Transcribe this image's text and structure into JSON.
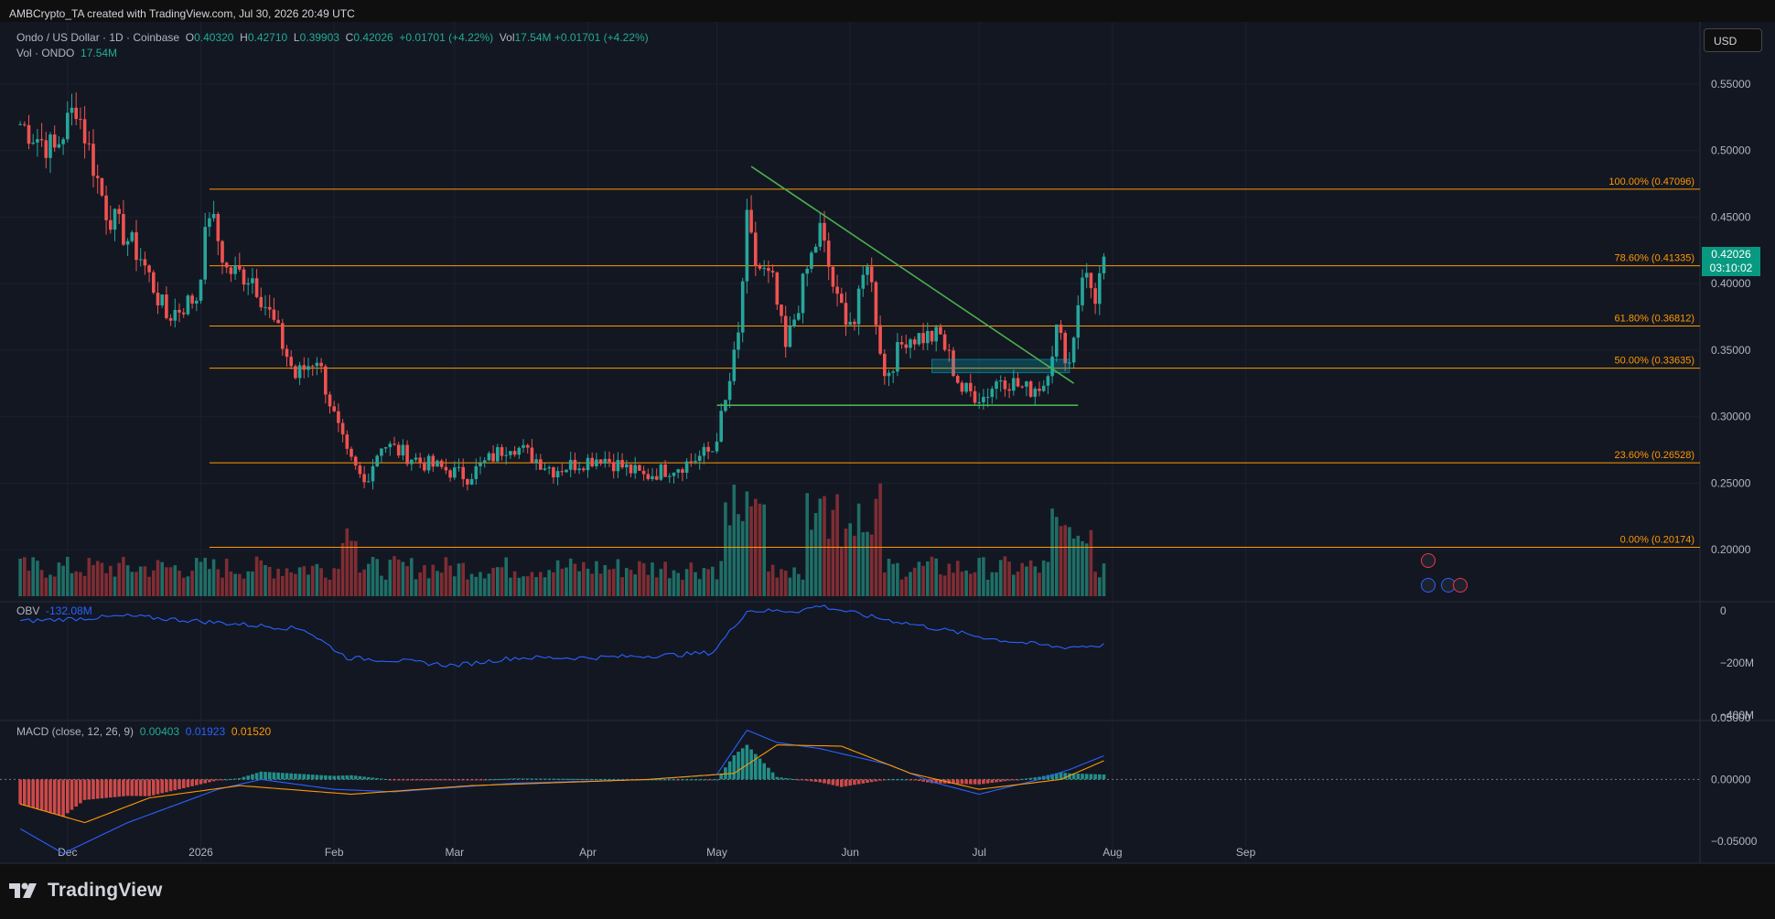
{
  "header": {
    "created_by": "AMBCrypto_TA created with TradingView.com, Jul 30, 2026 20:49 UTC",
    "symbol": "Ondo / US Dollar · 1D · Coinbase",
    "o_label": "O",
    "o_value": "0.40320",
    "h_label": "H",
    "h_value": "0.42710",
    "l_label": "L",
    "l_value": "0.39903",
    "c_label": "C",
    "c_value": "0.42026",
    "change": "+0.01701 (+4.22%)",
    "vol_label": "Vol",
    "vol_value": "17.54M",
    "vol_change": "+0.01701 (+4.22%)",
    "vol_series_label": "Vol · ONDO",
    "vol_series_value": "17.54M"
  },
  "currency_button": "USD",
  "last_price": {
    "value": "0.42026",
    "countdown": "03:10:02"
  },
  "obv": {
    "label": "OBV",
    "value": "-132.08M",
    "axis_ticks": [
      "0",
      "−200M",
      "−400M"
    ]
  },
  "macd": {
    "label": "MACD (close, 12, 26, 9)",
    "hist": "0.00403",
    "macd": "0.01923",
    "signal": "0.01520",
    "axis_ticks": [
      "0.05000",
      "0.00000",
      "−0.05000"
    ]
  },
  "branding": "TradingView",
  "colors": {
    "up": "#26a69a",
    "down": "#ef5350",
    "fib": "#ff9800",
    "trendline": "#4caf50",
    "obv": "#2962ff",
    "signal": "#ff9800",
    "background": "#0f0f0f",
    "pane": "#131722"
  },
  "chart_data": [
    {
      "type": "candlestick",
      "title": "Ondo / US Dollar · 1D · Coinbase",
      "x_tick_labels": [
        "Dec",
        "2026",
        "Feb",
        "Mar",
        "Apr",
        "May",
        "Jun",
        "Jul",
        "Aug",
        "Sep"
      ],
      "y_tick_labels": [
        "0.55000",
        "0.50000",
        "0.45000",
        "0.40000",
        "0.35000",
        "0.30000",
        "0.25000",
        "0.20000"
      ],
      "ylim": [
        0.165,
        0.565
      ],
      "price_anchors": [
        [
          "Nov 20",
          0.52
        ],
        [
          "Nov 28",
          0.5
        ],
        [
          "Dec 3",
          0.535
        ],
        [
          "Dec 10",
          0.455
        ],
        [
          "Dec 18",
          0.42
        ],
        [
          "Dec 24",
          0.375
        ],
        [
          "Dec 31",
          0.39
        ],
        [
          "Jan 3",
          0.455
        ],
        [
          "Jan 7",
          0.41
        ],
        [
          "Jan 13",
          0.405
        ],
        [
          "Jan 18",
          0.37
        ],
        [
          "Jan 23",
          0.33
        ],
        [
          "Jan 28",
          0.345
        ],
        [
          "Feb 1",
          0.3
        ],
        [
          "Feb 4",
          0.27
        ],
        [
          "Feb 8",
          0.25
        ],
        [
          "Feb 12",
          0.28
        ],
        [
          "Feb 22",
          0.265
        ],
        [
          "Mar 4",
          0.255
        ],
        [
          "Mar 14",
          0.28
        ],
        [
          "Mar 24",
          0.26
        ],
        [
          "Apr 4",
          0.27
        ],
        [
          "Apr 14",
          0.255
        ],
        [
          "Apr 24",
          0.265
        ],
        [
          "Apr 30",
          0.275
        ],
        [
          "May 3",
          0.31
        ],
        [
          "May 6",
          0.36
        ],
        [
          "May 8",
          0.445
        ],
        [
          "May 10",
          0.415
        ],
        [
          "May 14",
          0.4
        ],
        [
          "May 17",
          0.35
        ],
        [
          "May 22",
          0.41
        ],
        [
          "May 25",
          0.44
        ],
        [
          "May 29",
          0.385
        ],
        [
          "Jun 2",
          0.37
        ],
        [
          "Jun 5",
          0.42
        ],
        [
          "Jun 9",
          0.33
        ],
        [
          "Jun 14",
          0.36
        ],
        [
          "Jun 22",
          0.36
        ],
        [
          "Jun 27",
          0.32
        ],
        [
          "Jul 2",
          0.315
        ],
        [
          "Jul 6",
          0.33
        ],
        [
          "Jul 12",
          0.32
        ],
        [
          "Jul 16",
          0.325
        ],
        [
          "Jul 19",
          0.365
        ],
        [
          "Jul 22",
          0.34
        ],
        [
          "Jul 25",
          0.41
        ],
        [
          "Jul 28",
          0.39
        ],
        [
          "Jul 30",
          0.42026
        ]
      ],
      "fibonacci": [
        {
          "label": "100.00% (0.47096)",
          "value": 0.47096
        },
        {
          "label": "78.60% (0.41335)",
          "value": 0.41335
        },
        {
          "label": "61.80% (0.36812)",
          "value": 0.36812
        },
        {
          "label": "50.00% (0.33635)",
          "value": 0.33635
        },
        {
          "label": "23.60% (0.26528)",
          "value": 0.26528
        },
        {
          "label": "0.00% (0.20174)",
          "value": 0.20174
        }
      ],
      "fib_start_date": "Jan 3",
      "trendlines": [
        {
          "name": "descending",
          "from": [
            "May 9",
            0.488
          ],
          "to": [
            "Jul 23",
            0.325
          ]
        },
        {
          "name": "support",
          "from": [
            "May 1",
            0.3085
          ],
          "to": [
            "Jul 24",
            0.3085
          ]
        }
      ],
      "zone": {
        "from": [
          "Jun 20",
          0.343
        ],
        "to": [
          "Jul 22",
          0.333
        ]
      },
      "volume_unit": "M"
    },
    {
      "type": "line",
      "name": "OBV",
      "value": "-132.08M",
      "ylim": [
        -400,
        0
      ],
      "anchors": [
        [
          "Nov 20",
          -40
        ],
        [
          "Dec 15",
          -20
        ],
        [
          "Jan 5",
          -45
        ],
        [
          "Jan 25",
          -70
        ],
        [
          "Feb 4",
          -180
        ],
        [
          "Feb 15",
          -190
        ],
        [
          "Mar 1",
          -210
        ],
        [
          "Mar 15",
          -180
        ],
        [
          "Apr 1",
          -180
        ],
        [
          "Apr 20",
          -170
        ],
        [
          "Apr 30",
          -160
        ],
        [
          "May 8",
          0
        ],
        [
          "May 20",
          0
        ],
        [
          "May 25",
          20
        ],
        [
          "Jun 5",
          -20
        ],
        [
          "Jun 15",
          -50
        ],
        [
          "Jun 25",
          -80
        ],
        [
          "Jul 5",
          -110
        ],
        [
          "Jul 20",
          -140
        ],
        [
          "Jul 30",
          -132
        ]
      ]
    },
    {
      "type": "macd",
      "ylim": [
        -0.065,
        0.05
      ],
      "macd_anchors": [
        [
          "Nov 20",
          -0.04
        ],
        [
          "Nov 30",
          -0.06
        ],
        [
          "Dec 15",
          -0.035
        ],
        [
          "Jan 5",
          -0.008
        ],
        [
          "Jan 15",
          0.0
        ],
        [
          "Feb 1",
          -0.008
        ],
        [
          "Feb 15",
          -0.01
        ],
        [
          "Mar 15",
          -0.003
        ],
        [
          "Apr 15",
          0.0
        ],
        [
          "May 1",
          0.004
        ],
        [
          "May 8",
          0.04
        ],
        [
          "May 15",
          0.03
        ],
        [
          "May 25",
          0.025
        ],
        [
          "Jun 10",
          0.012
        ],
        [
          "Jun 20",
          -0.002
        ],
        [
          "Jul 1",
          -0.012
        ],
        [
          "Jul 15",
          0.0
        ],
        [
          "Jul 22",
          0.008
        ],
        [
          "Jul 30",
          0.01923
        ]
      ],
      "signal_anchors": [
        [
          "Nov 20",
          -0.02
        ],
        [
          "Dec 5",
          -0.035
        ],
        [
          "Dec 20",
          -0.015
        ],
        [
          "Jan 10",
          -0.005
        ],
        [
          "Feb 5",
          -0.012
        ],
        [
          "Mar 5",
          -0.005
        ],
        [
          "Apr 15",
          0.0
        ],
        [
          "May 5",
          0.005
        ],
        [
          "May 15",
          0.028
        ],
        [
          "May 30",
          0.027
        ],
        [
          "Jun 15",
          0.005
        ],
        [
          "Jul 1",
          -0.008
        ],
        [
          "Jul 20",
          0.0
        ],
        [
          "Jul 30",
          0.0152
        ]
      ]
    }
  ]
}
